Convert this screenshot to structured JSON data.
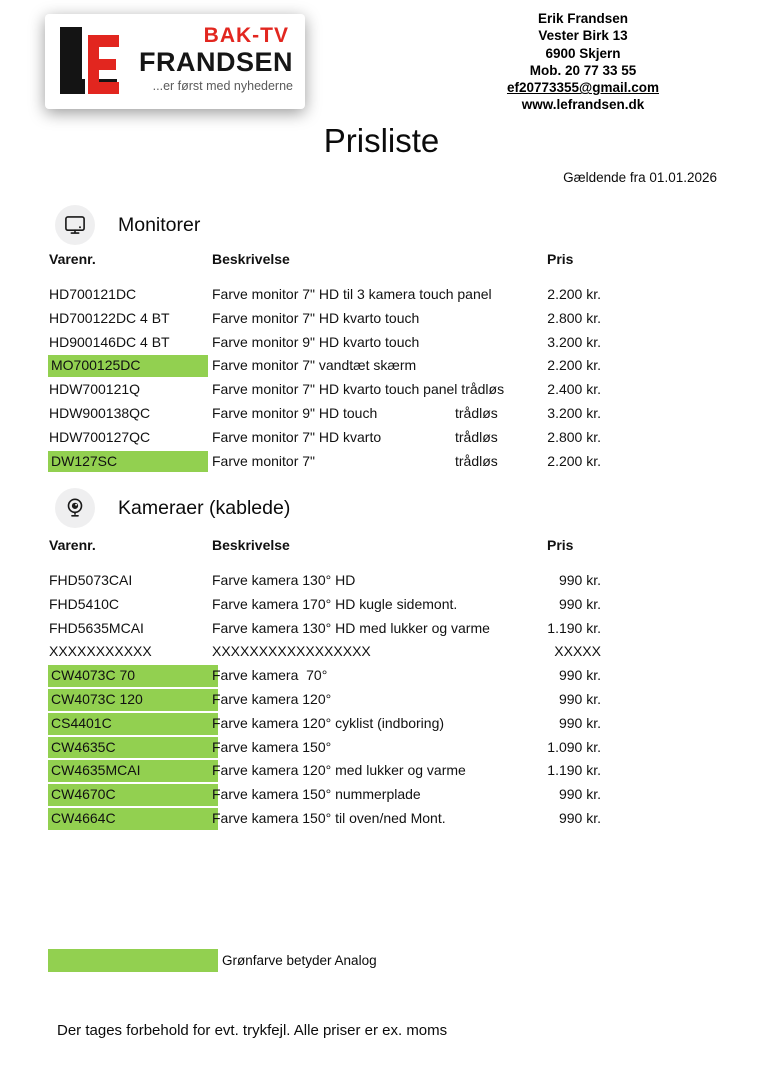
{
  "logo": {
    "mark": "LE",
    "line1": "BAK-TV",
    "line2": "FRANDSEN",
    "tagline": "...er først med nyhederne"
  },
  "contact": {
    "lines": [
      "Erik Frandsen",
      "Vester Birk 13",
      "6900 Skjern",
      "Mob. 20 77 33 55"
    ],
    "email": "ef20773355@gmail.com",
    "website": "www.lefrandsen.dk"
  },
  "title": "Prisliste",
  "valid_from": "Gældende fra 01.01.2026",
  "colors": {
    "highlight_green": "#92D050",
    "brand_red": "#E2261F"
  },
  "legend": {
    "text": "Grønfarve betyder Analog"
  },
  "footer": "Der tages forbehold for evt. trykfejl. Alle priser er ex. moms",
  "sections": [
    {
      "id": "monitors",
      "title": "Monitorer",
      "icon": "monitor-icon",
      "columns": [
        "Varenr.",
        "Beskrivelse",
        "Pris"
      ],
      "rows": [
        {
          "sku": "HD700121DC",
          "desc": "Farve monitor 7\" HD til 3 kamera touch panel",
          "price": "2.200 kr.",
          "green": false
        },
        {
          "sku": "HD700122DC 4 BT",
          "desc": "Farve monitor 7\" HD kvarto touch",
          "price": "2.800 kr.",
          "green": false
        },
        {
          "sku": "HD900146DC 4 BT",
          "desc": "Farve monitor 9\" HD kvarto touch",
          "price": "3.200 kr.",
          "green": false
        },
        {
          "sku": "MO700125DC",
          "desc": "Farve monitor 7\" vandtæt skærm",
          "price": "2.200 kr.",
          "green": true
        },
        {
          "sku": "HDW700121Q",
          "desc": "Farve monitor 7\" HD kvarto touch panel trådløs",
          "price": "2.400 kr.",
          "green": false
        },
        {
          "sku": "HDW900138QC",
          "desc": "Farve monitor 9\" HD touch",
          "desc2": "trådløs",
          "price": "3.200 kr.",
          "green": false
        },
        {
          "sku": "HDW700127QC",
          "desc": "Farve monitor 7\" HD kvarto",
          "desc2": "trådløs",
          "price": "2.800 kr.",
          "green": false
        },
        {
          "sku": "DW127SC",
          "desc": "Farve monitor 7\"",
          "desc2": "trådløs",
          "price": "2.200 kr.",
          "green": true
        }
      ]
    },
    {
      "id": "cameras",
      "title": "Kameraer (kablede)",
      "icon": "webcam-icon",
      "columns": [
        "Varenr.",
        "Beskrivelse",
        "Pris"
      ],
      "rows": [
        {
          "sku": "FHD5073CAI",
          "desc": "Farve kamera 130° HD",
          "price": "990 kr.",
          "green": false
        },
        {
          "sku": "FHD5410C",
          "desc": "Farve kamera 170° HD kugle sidemont.",
          "price": "990 kr.",
          "green": false
        },
        {
          "sku": "FHD5635MCAI",
          "desc": "Farve kamera 130° HD med lukker og varme",
          "price": "1.190 kr.",
          "green": false
        },
        {
          "sku": "XXXXXXXXXXX",
          "desc": "XXXXXXXXXXXXXXXXX",
          "price": "XXXXX",
          "green": false
        },
        {
          "sku": "CW4073C 70",
          "desc": "Farve kamera  70°",
          "price": "990 kr.",
          "green": true
        },
        {
          "sku": "CW4073C 120",
          "desc": "Farve kamera 120°",
          "price": "990 kr.",
          "green": true
        },
        {
          "sku": "CS4401C",
          "desc": "Farve kamera 120° cyklist (indboring)",
          "price": "990 kr.",
          "green": true
        },
        {
          "sku": "CW4635C",
          "desc": "Farve kamera 150°",
          "price": "1.090 kr.",
          "green": true
        },
        {
          "sku": "CW4635MCAI",
          "desc": "Farve kamera 120° med lukker og varme",
          "price": "1.190 kr.",
          "green": true
        },
        {
          "sku": "CW4670C",
          "desc": "Farve kamera 150° nummerplade",
          "price": "990 kr.",
          "green": true
        },
        {
          "sku": "CW4664C",
          "desc": "Farve kamera 150° til oven/ned Mont.",
          "price": "990 kr.",
          "green": true
        }
      ]
    }
  ]
}
